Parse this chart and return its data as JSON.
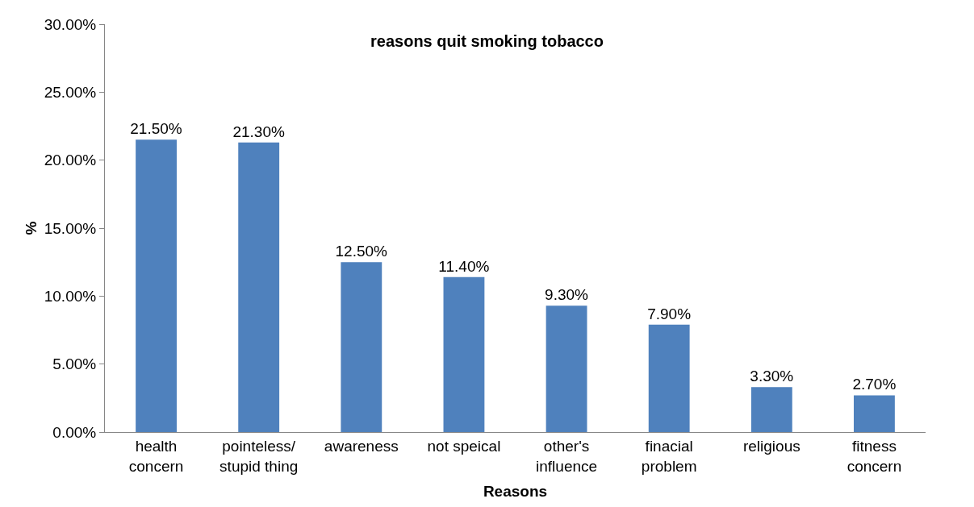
{
  "chart_data": {
    "type": "bar",
    "title": "reasons quit smoking tobacco",
    "xlabel": "Reasons",
    "ylabel": "%",
    "categories": [
      "health concern",
      "pointeless/ stupid thing",
      "awareness",
      "not speical",
      "other's influence",
      "finacial problem",
      "religious",
      "fitness concern"
    ],
    "values": [
      21.5,
      21.3,
      12.5,
      11.4,
      9.3,
      7.9,
      3.3,
      2.7
    ],
    "value_labels": [
      "21.50%",
      "21.30%",
      "12.50%",
      "11.40%",
      "9.30%",
      "7.90%",
      "3.30%",
      "2.70%"
    ],
    "color": "#4f81bd",
    "ylim": [
      0,
      30
    ],
    "yticks": [
      {
        "value": 0,
        "label": "0.00%"
      },
      {
        "value": 5,
        "label": "5.00%"
      },
      {
        "value": 10,
        "label": "10.00%"
      },
      {
        "value": 15,
        "label": "15.00%"
      },
      {
        "value": 20,
        "label": "20.00%"
      },
      {
        "value": 25,
        "label": "25.00%"
      },
      {
        "value": 30,
        "label": "30.00%"
      }
    ],
    "legend": false
  }
}
